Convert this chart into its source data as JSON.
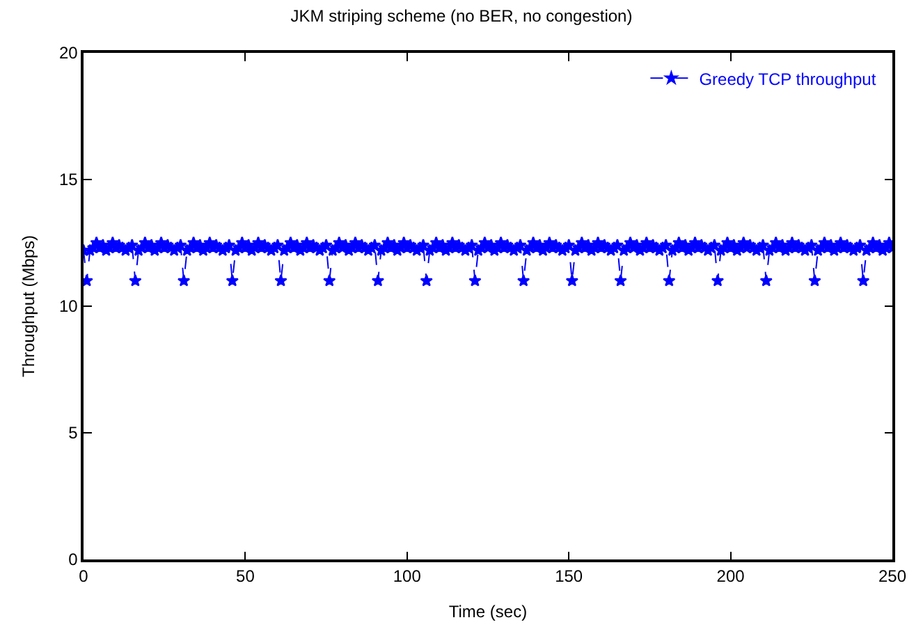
{
  "chart_data": {
    "type": "line",
    "title": "JKM striping scheme (no BER, no congestion)",
    "xlabel": "Time (sec)",
    "ylabel": "Throughput (Mbps)",
    "xlim": [
      0,
      250
    ],
    "xticks": [
      0,
      50,
      100,
      150,
      200,
      250
    ],
    "ylim": [
      0,
      20
    ],
    "yticks": [
      0,
      5,
      10,
      15,
      20
    ],
    "legend": "top right",
    "marker": "star",
    "line_style": "dashed",
    "series": [
      {
        "name": "Greedy TCP throughput",
        "color": "#0000ff",
        "x": [
          0,
          1,
          2,
          3,
          4,
          5,
          6,
          7,
          8,
          9,
          10,
          11,
          12,
          13,
          14,
          15,
          16,
          17,
          18,
          19,
          20,
          21,
          22,
          23,
          24,
          25,
          26,
          27,
          28,
          29,
          30,
          31,
          32,
          33,
          34,
          35,
          36,
          37,
          38,
          39,
          40,
          41,
          42,
          43,
          44,
          45,
          46,
          47,
          48,
          49,
          50,
          51,
          52,
          53,
          54,
          55,
          56,
          57,
          58,
          59,
          60,
          61,
          62,
          63,
          64,
          65,
          66,
          67,
          68,
          69,
          70,
          71,
          72,
          73,
          74,
          75,
          76,
          77,
          78,
          79,
          80,
          81,
          82,
          83,
          84,
          85,
          86,
          87,
          88,
          89,
          90,
          91,
          92,
          93,
          94,
          95,
          96,
          97,
          98,
          99,
          100,
          101,
          102,
          103,
          104,
          105,
          106,
          107,
          108,
          109,
          110,
          111,
          112,
          113,
          114,
          115,
          116,
          117,
          118,
          119,
          120,
          121,
          122,
          123,
          124,
          125,
          126,
          127,
          128,
          129,
          130,
          131,
          132,
          133,
          134,
          135,
          136,
          137,
          138,
          139,
          140,
          141,
          142,
          143,
          144,
          145,
          146,
          147,
          148,
          149,
          150,
          151,
          152,
          153,
          154,
          155,
          156,
          157,
          158,
          159,
          160,
          161,
          162,
          163,
          164,
          165,
          166,
          167,
          168,
          169,
          170,
          171,
          172,
          173,
          174,
          175,
          176,
          177,
          178,
          179,
          180,
          181,
          182,
          183,
          184,
          185,
          186,
          187,
          188,
          189,
          190,
          191,
          192,
          193,
          194,
          195,
          196,
          197,
          198,
          199,
          200,
          201,
          202,
          203,
          204,
          205,
          206,
          207,
          208,
          209,
          210,
          211,
          212,
          213,
          214,
          215,
          216,
          217,
          218,
          219,
          220,
          221,
          222,
          223,
          224,
          225,
          226,
          227,
          228,
          229,
          230,
          231,
          232,
          233,
          234,
          235,
          236,
          237,
          238,
          239,
          240,
          241,
          242,
          243,
          244,
          245,
          246,
          247,
          248,
          249,
          250
        ],
        "values": [
          12.2,
          11.0,
          12.2,
          12.3,
          12.5,
          12.3,
          12.4,
          12.2,
          12.3,
          12.5,
          12.3,
          12.4,
          12.3,
          12.2,
          12.3,
          12.4,
          11.0,
          12.2,
          12.3,
          12.5,
          12.3,
          12.4,
          12.2,
          12.3,
          12.5,
          12.3,
          12.4,
          12.3,
          12.2,
          12.3,
          12.4,
          11.0,
          12.2,
          12.3,
          12.5,
          12.3,
          12.4,
          12.2,
          12.3,
          12.5,
          12.3,
          12.4,
          12.3,
          12.2,
          12.3,
          12.4,
          11.0,
          12.2,
          12.3,
          12.5,
          12.3,
          12.4,
          12.2,
          12.3,
          12.5,
          12.3,
          12.4,
          12.3,
          12.2,
          12.3,
          12.4,
          11.0,
          12.2,
          12.3,
          12.5,
          12.3,
          12.4,
          12.2,
          12.3,
          12.5,
          12.3,
          12.4,
          12.3,
          12.2,
          12.3,
          12.4,
          11.0,
          12.2,
          12.3,
          12.5,
          12.3,
          12.4,
          12.2,
          12.3,
          12.5,
          12.3,
          12.4,
          12.3,
          12.2,
          12.3,
          12.4,
          11.0,
          12.2,
          12.3,
          12.5,
          12.3,
          12.4,
          12.2,
          12.3,
          12.5,
          12.3,
          12.4,
          12.3,
          12.2,
          12.3,
          12.4,
          11.0,
          12.2,
          12.3,
          12.5,
          12.3,
          12.4,
          12.2,
          12.3,
          12.5,
          12.3,
          12.4,
          12.3,
          12.2,
          12.3,
          12.4,
          11.0,
          12.2,
          12.3,
          12.5,
          12.3,
          12.4,
          12.2,
          12.3,
          12.5,
          12.3,
          12.4,
          12.3,
          12.2,
          12.3,
          12.4,
          11.0,
          12.2,
          12.3,
          12.5,
          12.3,
          12.4,
          12.2,
          12.3,
          12.5,
          12.3,
          12.4,
          12.3,
          12.2,
          12.3,
          12.4,
          11.0,
          12.2,
          12.3,
          12.5,
          12.3,
          12.4,
          12.2,
          12.3,
          12.5,
          12.3,
          12.4,
          12.3,
          12.2,
          12.3,
          12.4,
          11.0,
          12.2,
          12.3,
          12.5,
          12.3,
          12.4,
          12.2,
          12.3,
          12.5,
          12.3,
          12.4,
          12.3,
          12.2,
          12.3,
          12.4,
          11.0,
          12.2,
          12.3,
          12.5,
          12.3,
          12.4,
          12.2,
          12.3,
          12.5,
          12.3,
          12.4,
          12.3,
          12.2,
          12.3,
          12.4,
          11.0,
          12.2,
          12.3,
          12.5,
          12.3,
          12.4,
          12.2,
          12.3,
          12.5,
          12.3,
          12.4,
          12.3,
          12.2,
          12.3,
          12.4,
          11.0,
          12.2,
          12.3,
          12.5,
          12.3,
          12.4,
          12.2,
          12.3,
          12.5,
          12.3,
          12.4,
          12.3,
          12.2,
          12.3,
          12.4,
          11.0,
          12.2,
          12.3,
          12.5,
          12.3,
          12.4,
          12.2,
          12.3,
          12.5,
          12.3,
          12.4,
          12.3,
          12.2,
          12.3,
          12.4,
          11.0,
          12.2,
          12.3,
          12.5,
          12.3,
          12.4,
          12.2,
          12.3,
          12.5,
          12.3
        ]
      }
    ]
  }
}
